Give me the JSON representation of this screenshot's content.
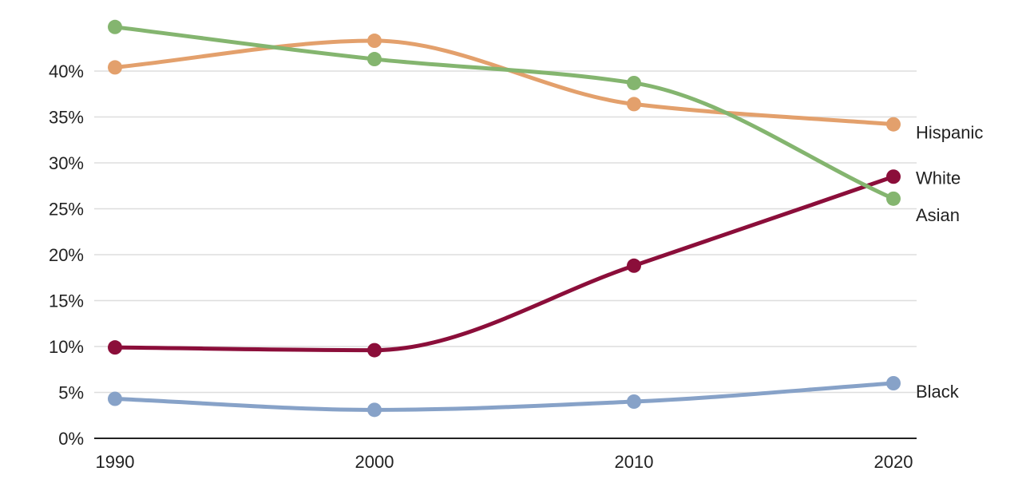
{
  "chart_data": {
    "type": "line",
    "title": "",
    "xlabel": "",
    "ylabel": "",
    "x": [
      1990,
      2000,
      2010,
      2020
    ],
    "x_tick_labels": [
      "1990",
      "2000",
      "2010",
      "2020"
    ],
    "ylim": [
      0,
      45
    ],
    "y_ticks": [
      0,
      5,
      10,
      15,
      20,
      25,
      30,
      35,
      40
    ],
    "y_tick_labels": [
      "0%",
      "5%",
      "10%",
      "15%",
      "20%",
      "25%",
      "30%",
      "35%",
      "40%"
    ],
    "grid": true,
    "legend": "direct labels at line ends",
    "series": [
      {
        "name": "Hispanic",
        "color": "#E3A06C",
        "values": [
          40.4,
          43.3,
          36.4,
          34.2
        ]
      },
      {
        "name": "White",
        "color": "#8B0E3A",
        "values": [
          9.9,
          9.6,
          18.8,
          28.5
        ]
      },
      {
        "name": "Asian",
        "color": "#84B56F",
        "values": [
          44.8,
          41.3,
          38.7,
          26.1
        ]
      },
      {
        "name": "Black",
        "color": "#87A2C8",
        "values": [
          4.3,
          3.1,
          4.0,
          6.0
        ]
      }
    ]
  }
}
